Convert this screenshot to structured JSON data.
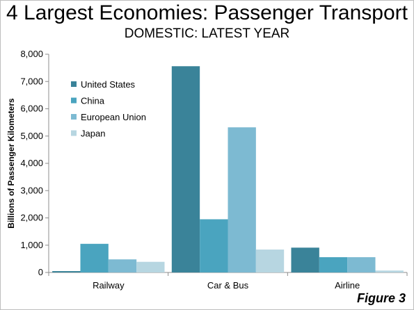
{
  "header": {
    "title": "4 Largest Economies: Passenger Transport",
    "subtitle": "DOMESTIC: LATEST YEAR"
  },
  "footer": {
    "figure_label": "Figure 3"
  },
  "chart_data": {
    "type": "bar",
    "title": "4 Largest Economies: Passenger Transport",
    "subtitle": "DOMESTIC: LATEST YEAR",
    "xlabel": "",
    "ylabel": "Billions of Passenger Kilometers",
    "ylim": [
      0,
      8000
    ],
    "yticks": [
      0,
      1000,
      2000,
      3000,
      4000,
      5000,
      6000,
      7000,
      8000
    ],
    "ytick_labels": [
      "0",
      "1,000",
      "2,000",
      "3,000",
      "4,000",
      "5,000",
      "6,000",
      "7,000",
      "8,000"
    ],
    "grid": false,
    "legend_position": "top-left",
    "categories": [
      "Railway",
      "Car & Bus",
      "Airline"
    ],
    "series": [
      {
        "name": "United States",
        "color": "#3a8399",
        "values": [
          50,
          7560,
          910
        ]
      },
      {
        "name": "China",
        "color": "#4aa4bf",
        "values": [
          1050,
          1950,
          560
        ]
      },
      {
        "name": "European Union",
        "color": "#7dbad2",
        "values": [
          480,
          5320,
          560
        ]
      },
      {
        "name": "Japan",
        "color": "#b7d6e1",
        "values": [
          390,
          840,
          70
        ]
      }
    ]
  }
}
